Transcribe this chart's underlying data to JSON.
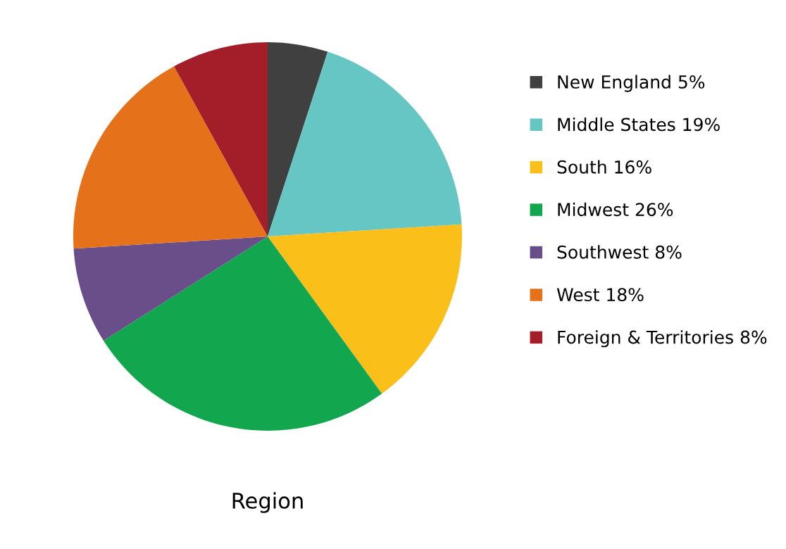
{
  "chart_data": {
    "type": "pie",
    "xlabel": "Region",
    "categories": [
      "New England 5%",
      "Middle States 19%",
      "South 16%",
      "Midwest 26%",
      "Southwest 8%",
      "West 18%",
      "Foreign & Territories 8%"
    ],
    "values": [
      5,
      19,
      16,
      26,
      8,
      18,
      8
    ],
    "colors": [
      "#404040",
      "#66c6c4",
      "#fbbf1a",
      "#12a74f",
      "#6a4e8a",
      "#e5711a",
      "#a31e28"
    ],
    "legend": "right"
  }
}
